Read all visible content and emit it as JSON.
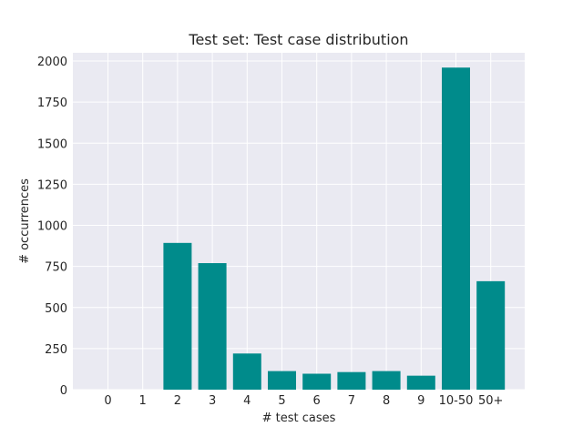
{
  "chart_data": {
    "type": "bar",
    "title": "Test set: Test case distribution",
    "xlabel": "# test cases",
    "ylabel": "# occurrences",
    "categories": [
      "0",
      "1",
      "2",
      "3",
      "4",
      "5",
      "6",
      "7",
      "8",
      "9",
      "10-50",
      "50+"
    ],
    "values": [
      0,
      0,
      893,
      770,
      220,
      113,
      97,
      107,
      113,
      85,
      1960,
      660
    ],
    "ylim": [
      0,
      2050
    ],
    "yticks": [
      0,
      250,
      500,
      750,
      1000,
      1250,
      1500,
      1750,
      2000
    ],
    "grid": true,
    "bar_color": "#008b8b",
    "background_color": "#eaeaf2"
  }
}
